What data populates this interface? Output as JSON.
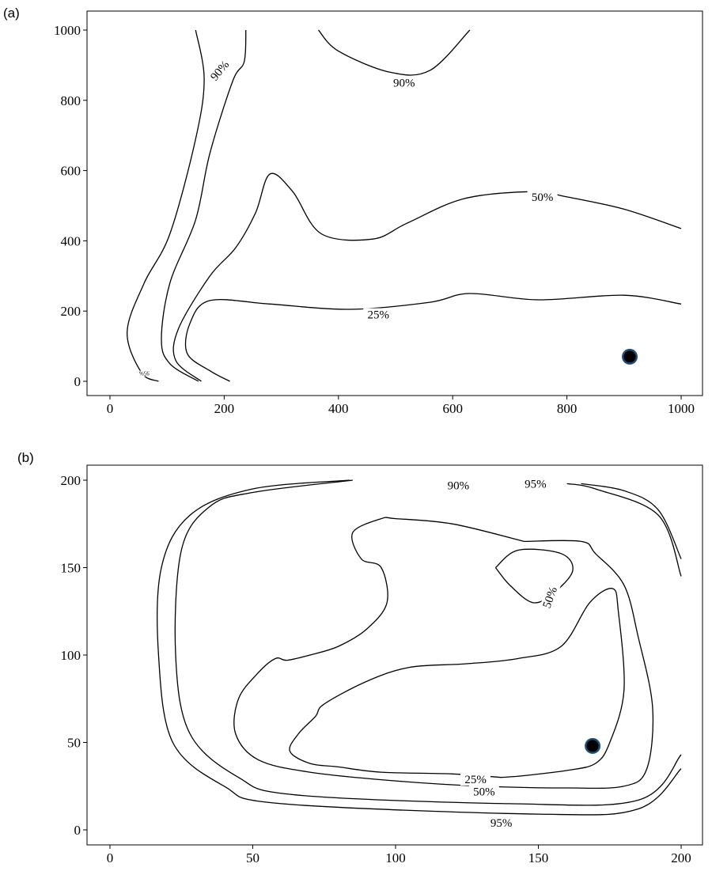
{
  "chart_data": [
    {
      "panel": "(a)",
      "type": "contour",
      "xlim": [
        0,
        1000
      ],
      "ylim": [
        0,
        1000
      ],
      "xticks": [
        0,
        200,
        400,
        600,
        800,
        1000
      ],
      "yticks": [
        0,
        200,
        400,
        600,
        800,
        1000
      ],
      "marker": {
        "x": 910,
        "y": 70
      },
      "contours": [
        {
          "label": "90%",
          "segments": [
            [
              [
                85,
                0
              ],
              [
                55,
                25
              ],
              [
                30,
                140
              ],
              [
                60,
                280
              ],
              [
                105,
                420
              ],
              [
                150,
                690
              ],
              [
                165,
                860
              ],
              [
                150,
                1000
              ]
            ],
            [
              [
                155,
                0
              ],
              [
                105,
                50
              ],
              [
                90,
                120
              ],
              [
                105,
                280
              ],
              [
                150,
                460
              ],
              [
                175,
                650
              ],
              [
                215,
                855
              ],
              [
                235,
                910
              ],
              [
                238,
                1000
              ]
            ]
          ]
        },
        {
          "label": "90%",
          "segments": [
            [
              [
                365,
                1000
              ],
              [
                400,
                940
              ],
              [
                490,
                880
              ],
              [
                560,
                885
              ],
              [
                630,
                1000
              ]
            ]
          ]
        },
        {
          "label": "50%",
          "segments": [
            [
              [
                160,
                0
              ],
              [
                115,
                60
              ],
              [
                120,
                150
              ],
              [
                175,
                300
              ],
              [
                220,
                380
              ],
              [
                255,
                480
              ],
              [
                280,
                590
              ],
              [
                320,
                540
              ],
              [
                370,
                420
              ],
              [
                460,
                405
              ],
              [
                520,
                450
              ],
              [
                620,
                520
              ],
              [
                740,
                540
              ],
              [
                800,
                525
              ],
              [
                900,
                490
              ],
              [
                1000,
                435
              ]
            ]
          ]
        },
        {
          "label": "25%",
          "segments": [
            [
              [
                210,
                0
              ],
              [
                175,
                30
              ],
              [
                135,
                80
              ],
              [
                140,
                165
              ],
              [
                175,
                230
              ],
              [
                280,
                220
              ],
              [
                420,
                205
              ],
              [
                560,
                225
              ],
              [
                630,
                250
              ],
              [
                750,
                232
              ],
              [
                900,
                245
              ],
              [
                1000,
                220
              ]
            ]
          ]
        },
        {
          "label": "95%",
          "segments": []
        }
      ],
      "labels": [
        {
          "text": "90%",
          "x": 192,
          "y": 885,
          "angle": -50
        },
        {
          "text": "90%",
          "x": 515,
          "y": 850,
          "angle": 0
        },
        {
          "text": "50%",
          "x": 757,
          "y": 525,
          "angle": 0
        },
        {
          "text": "25%",
          "x": 470,
          "y": 190,
          "angle": 0
        },
        {
          "text": "95%",
          "x": 60,
          "y": 22,
          "angle": 180
        }
      ]
    },
    {
      "panel": "(b)",
      "type": "contour",
      "xlim": [
        0,
        200
      ],
      "ylim": [
        0,
        200
      ],
      "xticks": [
        0,
        50,
        100,
        150,
        200
      ],
      "yticks": [
        0,
        50,
        100,
        150,
        200
      ],
      "marker": {
        "x": 169,
        "y": 48
      },
      "contours": [
        {
          "label": "95%",
          "segments": [
            [
              [
                84,
                200
              ],
              [
                50,
                195
              ],
              [
                28,
                180
              ],
              [
                18,
                150
              ],
              [
                17,
                100
              ],
              [
                22,
                50
              ],
              [
                40,
                25
              ],
              [
                60,
                15
              ],
              [
                150,
                9
              ],
              [
                185,
                12
              ],
              [
                200,
                35
              ]
            ],
            [
              [
                200,
                145
              ],
              [
                192,
                180
              ],
              [
                170,
                195
              ],
              [
                160,
                198
              ]
            ]
          ]
        },
        {
          "label": "90%",
          "segments": [
            [
              [
                85,
                200
              ],
              [
                50,
                193
              ],
              [
                35,
                185
              ],
              [
                25,
                160
              ],
              [
                23,
                100
              ],
              [
                28,
                55
              ],
              [
                45,
                30
              ],
              [
                65,
                20
              ],
              [
                140,
                15
              ],
              [
                185,
                17
              ],
              [
                200,
                43
              ]
            ],
            [
              [
                200,
                155
              ],
              [
                192,
                183
              ],
              [
                180,
                194
              ],
              [
                165,
                198
              ]
            ]
          ]
        },
        {
          "label": "50%",
          "segments": [
            [
              [
                145,
                165
              ],
              [
                120,
                175
              ],
              [
                100,
                178
              ],
              [
                95,
                178
              ],
              [
                85,
                170
              ],
              [
                88,
                155
              ],
              [
                95,
                150
              ],
              [
                97,
                130
              ],
              [
                90,
                115
              ],
              [
                80,
                105
              ],
              [
                70,
                100
              ],
              [
                62,
                97
              ],
              [
                58,
                98
              ],
              [
                52,
                90
              ],
              [
                45,
                75
              ],
              [
                44,
                55
              ],
              [
                52,
                40
              ],
              [
                70,
                33
              ],
              [
                100,
                28
              ],
              [
                130,
                25
              ],
              [
                160,
                24
              ],
              [
                180,
                25
              ],
              [
                188,
                35
              ],
              [
                190,
                70
              ],
              [
                185,
                110
              ],
              [
                180,
                140
              ],
              [
                170,
                158
              ],
              [
                165,
                165
              ],
              [
                145,
                165
              ]
            ]
          ]
        },
        {
          "label": "50%",
          "segments": [
            [
              [
                135,
                150
              ],
              [
                143,
                160
              ],
              [
                158,
                158
              ],
              [
                162,
                148
              ],
              [
                155,
                135
              ],
              [
                148,
                130
              ],
              [
                140,
                140
              ],
              [
                135,
                150
              ]
            ]
          ]
        },
        {
          "label": "25%",
          "segments": [
            [
              [
                137,
                30
              ],
              [
                120,
                32
              ],
              [
                95,
                33
              ],
              [
                80,
                36
              ],
              [
                70,
                38
              ],
              [
                63,
                45
              ],
              [
                66,
                55
              ],
              [
                72,
                65
              ],
              [
                75,
                72
              ],
              [
                90,
                85
              ],
              [
                105,
                93
              ],
              [
                125,
                95
              ],
              [
                143,
                98
              ],
              [
                158,
                105
              ],
              [
                168,
                130
              ],
              [
                176,
                138
              ],
              [
                178,
                125
              ],
              [
                180,
                80
              ],
              [
                175,
                50
              ],
              [
                170,
                38
              ],
              [
                160,
                34
              ],
              [
                145,
                31
              ],
              [
                137,
                30
              ]
            ]
          ]
        }
      ],
      "labels": [
        {
          "text": "90%",
          "x": 122,
          "y": 197,
          "angle": 0
        },
        {
          "text": "95%",
          "x": 149,
          "y": 198,
          "angle": 0
        },
        {
          "text": "50%",
          "x": 154,
          "y": 133,
          "angle": -70
        },
        {
          "text": "25%",
          "x": 128,
          "y": 29,
          "angle": 0
        },
        {
          "text": "50%",
          "x": 131,
          "y": 22,
          "angle": 0
        },
        {
          "text": "95%",
          "x": 137,
          "y": 4,
          "angle": 0
        }
      ]
    }
  ]
}
